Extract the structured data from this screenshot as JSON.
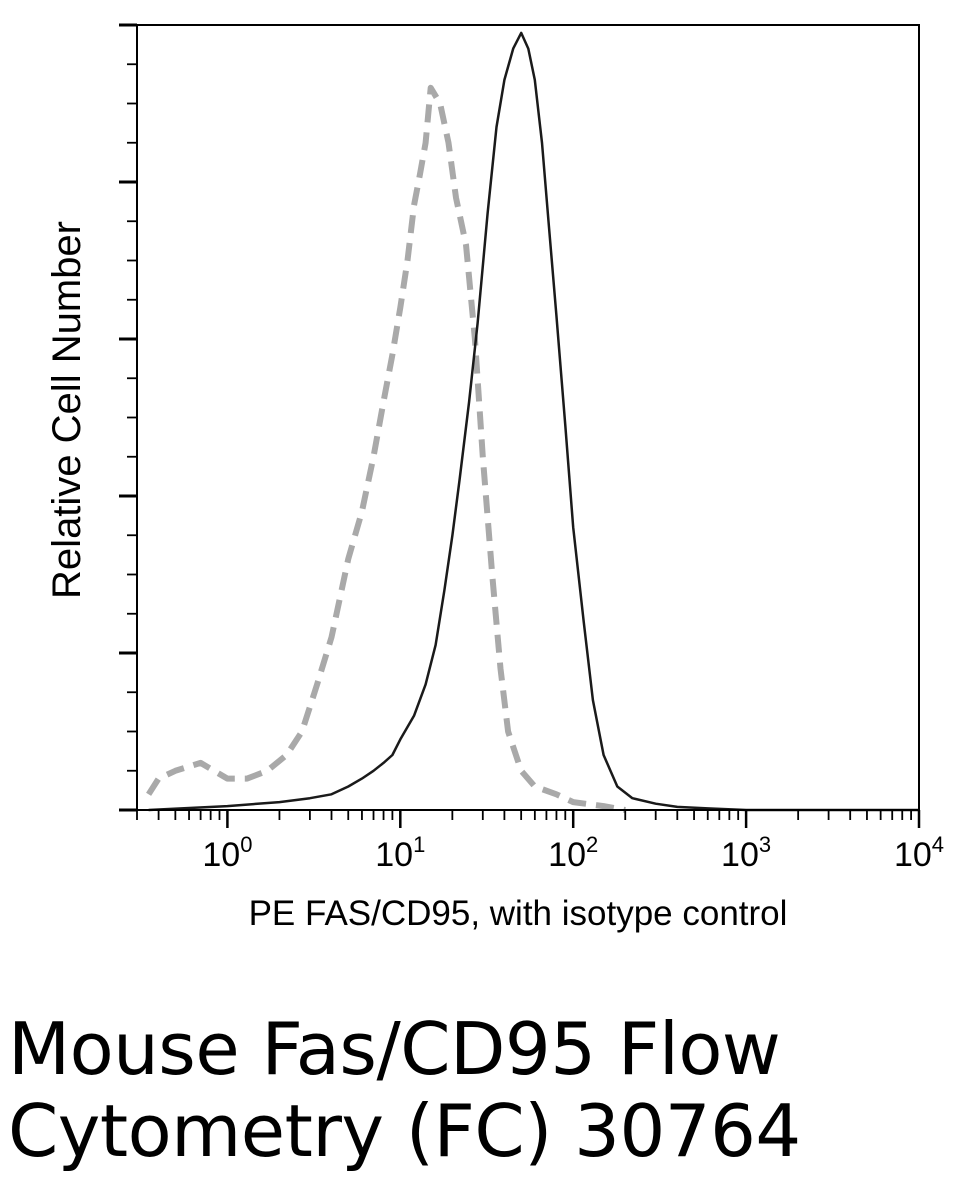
{
  "chart_data": {
    "type": "line",
    "title": "",
    "xlabel": "PE FAS/CD95, with isotype control",
    "ylabel": "Relative Cell Number",
    "xscale": "log",
    "xlim": [
      0.3,
      10000
    ],
    "ylim": [
      0,
      100
    ],
    "grid": false,
    "x_ticks": [
      {
        "base": "10",
        "exp": "0",
        "value": 1
      },
      {
        "base": "10",
        "exp": "1",
        "value": 10
      },
      {
        "base": "10",
        "exp": "2",
        "value": 100
      },
      {
        "base": "10",
        "exp": "3",
        "value": 1000
      },
      {
        "base": "10",
        "exp": "4",
        "value": 10000
      }
    ],
    "series": [
      {
        "style": "dashed",
        "color": "#a9a9a9",
        "x": [
          0.35,
          0.4,
          0.5,
          0.7,
          1.0,
          1.3,
          1.7,
          2.2,
          2.7,
          3.3,
          4.0,
          5.0,
          6.0,
          7.0,
          8.0,
          9.0,
          10.0,
          11.0,
          12.0,
          13.0,
          14.0,
          15.0,
          17.0,
          19.0,
          21.0,
          24.0,
          27.0,
          30.0,
          34.0,
          38.0,
          42.0,
          50.0,
          60.0,
          80.0,
          100.0,
          150.0,
          200.0
        ],
        "y": [
          2,
          4,
          5,
          6,
          4,
          4,
          5,
          7,
          10,
          16,
          22,
          32,
          38,
          45,
          52,
          58,
          64,
          70,
          77,
          81,
          85,
          92,
          90,
          85,
          78,
          72,
          60,
          45,
          30,
          18,
          10,
          5,
          3,
          2,
          1,
          0.5,
          0
        ]
      },
      {
        "style": "solid",
        "color": "#1a1a1a",
        "x": [
          0.35,
          1.0,
          2.0,
          3.0,
          4.0,
          5.0,
          6.0,
          7.0,
          8.0,
          9.0,
          10.0,
          12.0,
          14.0,
          16.0,
          18.0,
          20.0,
          22.0,
          25.0,
          28.0,
          32.0,
          36.0,
          40.0,
          45.0,
          50.0,
          55.0,
          60.0,
          66.0,
          72.0,
          80.0,
          90.0,
          100.0,
          115.0,
          130.0,
          150.0,
          180.0,
          220.0,
          300.0,
          400.0,
          600.0,
          1000.0,
          3000.0,
          10000.0
        ],
        "y": [
          0,
          0.5,
          1,
          1.5,
          2,
          3,
          4,
          5,
          6,
          7,
          9,
          12,
          16,
          21,
          28,
          35,
          42,
          52,
          62,
          76,
          87,
          93,
          97,
          99,
          97,
          93,
          85,
          75,
          63,
          49,
          36,
          24,
          14,
          7,
          3,
          1.5,
          0.8,
          0.4,
          0.2,
          0,
          0,
          0
        ]
      }
    ]
  },
  "caption": {
    "line1": "Mouse Fas/CD95 Flow",
    "line2": "Cytometry (FC) 30764"
  }
}
